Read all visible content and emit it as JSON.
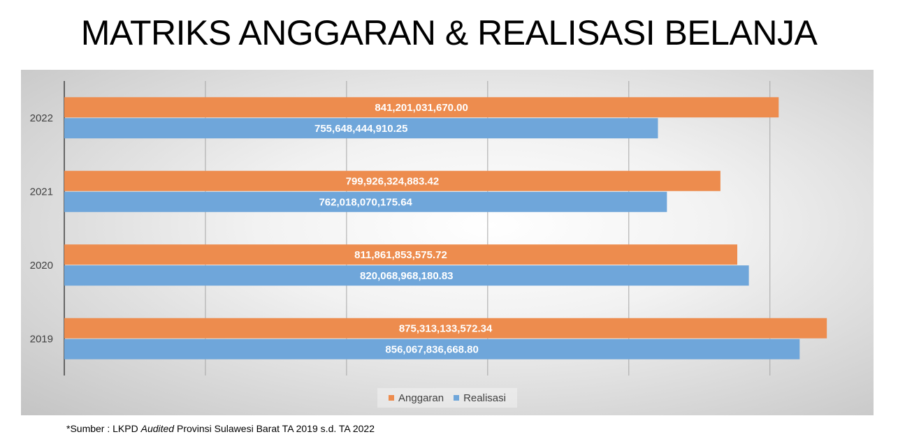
{
  "title": "MATRIKS ANGGARAN & REALISASI BELANJA",
  "source": {
    "prefix": "*Sumber : LKPD ",
    "italic": "Audited",
    "suffix": " Provinsi Sulawesi Barat TA 2019 s.d. TA 2022"
  },
  "colors": {
    "anggaran": "#ED8C4E",
    "realisasi": "#6FA6DA",
    "grid": "#a6a6a6",
    "axis": "#404040"
  },
  "chart_data": {
    "type": "bar",
    "orientation": "horizontal",
    "categories": [
      "2022",
      "2021",
      "2020",
      "2019"
    ],
    "series": [
      {
        "name": "Anggaran",
        "values": [
          841201031670.0,
          799926324883.42,
          811861853575.72,
          875313133572.34
        ],
        "labels": [
          "841,201,031,670.00",
          "799,926,324,883.42",
          "811,861,853,575.72",
          "875,313,133,572.34"
        ]
      },
      {
        "name": "Realisasi",
        "values": [
          755648444910.25,
          762018070175.64,
          820068968180.83,
          856067836668.8
        ],
        "labels": [
          "755,648,444,910.25",
          "762,018,070,175.64",
          "820,068,968,180.83",
          "856,067,836,668.80"
        ]
      }
    ],
    "xlim": [
      335000000000,
      900000000000
    ],
    "gridlines": [
      435000000000,
      535000000000,
      635000000000,
      735000000000,
      835000000000
    ],
    "legend": {
      "position": "bottom",
      "entries": [
        "Anggaran",
        "Realisasi"
      ]
    },
    "grid": true
  }
}
